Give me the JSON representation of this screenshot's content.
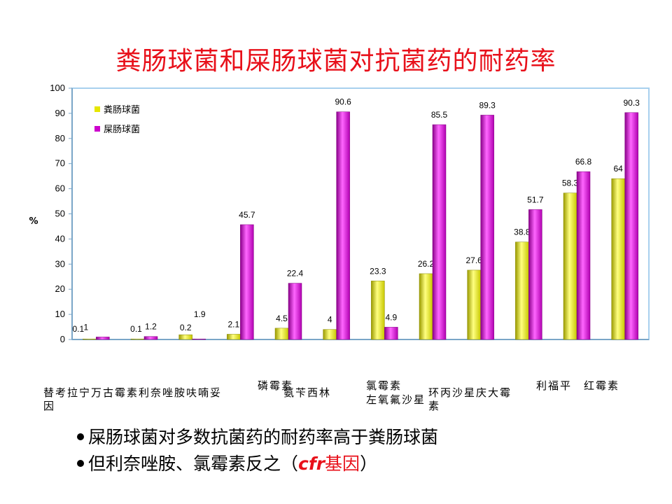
{
  "title": "粪肠球菌和屎肠球菌对抗菌药的耐药率",
  "chart_data": {
    "type": "bar",
    "title": "粪肠球菌和屎肠球菌对抗菌药的耐药率",
    "ylabel": "%",
    "ylim": [
      0,
      100
    ],
    "yticks": [
      0,
      10,
      20,
      30,
      40,
      50,
      60,
      70,
      80,
      90,
      100
    ],
    "grid": false,
    "legend_position": "top-left",
    "categories": [
      "替考拉宁",
      "万古霉素",
      "利奈唑胺",
      "呋喃妥因",
      "磷霉素",
      "氨苄西林",
      "氯霉素",
      "左氧氟沙星",
      "环丙沙星",
      "庆大霉素",
      "利福平",
      "红霉素"
    ],
    "series": [
      {
        "name": "粪肠球菌",
        "color": "#e6e600",
        "values": [
          0.1,
          0.1,
          1.9,
          2.1,
          4.5,
          4,
          23.3,
          26.2,
          27.6,
          38.8,
          58.3,
          64
        ]
      },
      {
        "name": "屎肠球菌",
        "color": "#cc00cc",
        "values": [
          1,
          1.2,
          0.2,
          45.7,
          22.4,
          90.6,
          4.9,
          85.5,
          89.3,
          51.7,
          66.8,
          90.3
        ]
      }
    ],
    "data_labels": [
      [
        "0.1",
        "0.1",
        "1.9",
        "2.1",
        "4.5",
        "4",
        "23.3",
        "26.2",
        "27.6",
        "38.8",
        "58.3",
        "64"
      ],
      [
        "1",
        "1.2",
        "0.2",
        "45.7",
        "22.4",
        "90.6",
        "4.9",
        "85.5",
        "89.3",
        "51.7",
        "66.8",
        "90.3"
      ]
    ],
    "xlabel_texts": [
      "替考拉宁万古霉素利奈唑胺呋喃妥",
      "因",
      "磷霉素",
      "氨苄西林",
      "氯霉素",
      "左氧氟沙星",
      "环丙沙星庆大霉",
      "素",
      "利福平",
      "红霉素"
    ]
  },
  "bullets": [
    {
      "text": "屎肠球菌对多数抗菌药的耐药率高于粪肠球菌"
    },
    {
      "before": "但利奈唑胺、氯霉素反之（",
      "italic": "cfr",
      "after_red": "基因",
      "close": "）"
    }
  ]
}
